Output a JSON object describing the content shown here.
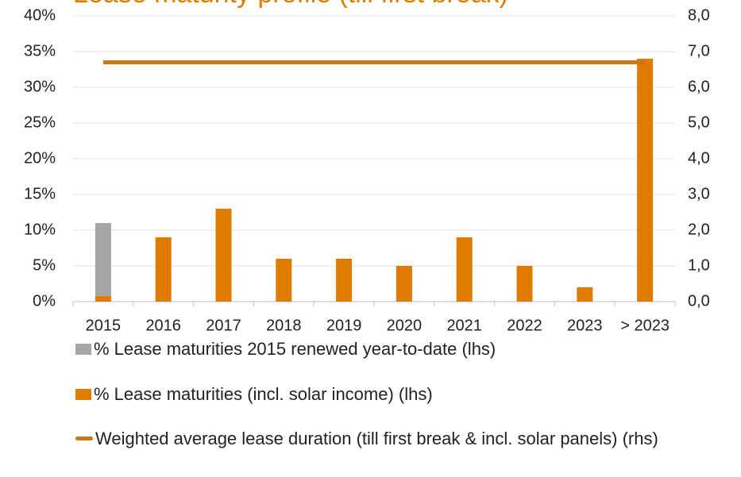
{
  "chart_data": {
    "type": "bar",
    "title": "Lease maturity profile (till first break)",
    "categories": [
      "2015",
      "2016",
      "2017",
      "2018",
      "2019",
      "2020",
      "2021",
      "2022",
      "2023",
      "> 2023"
    ],
    "series": [
      {
        "name": "% Lease maturities 2015 renewed year-to-date (lhs)",
        "color": "#a6a6a6",
        "values": [
          10.2,
          0,
          0,
          0,
          0,
          0,
          0,
          0,
          0,
          0
        ]
      },
      {
        "name": "% Lease maturities (incl. solar income) (lhs)",
        "color": "#e07b00",
        "values": [
          0.8,
          9,
          13,
          6,
          6,
          5,
          9,
          5,
          2,
          34
        ]
      },
      {
        "name": "Weighted average lease duration (till first break & incl. solar panels) (rhs)",
        "color": "#c8781a",
        "axis": "y2",
        "type": "line",
        "values": [
          6.7,
          6.7,
          6.7,
          6.7,
          6.7,
          6.7,
          6.7,
          6.7,
          6.7,
          6.7
        ]
      }
    ],
    "ylim": [
      0,
      40
    ],
    "yticks": [
      {
        "value": 0,
        "label": "0%"
      },
      {
        "value": 5,
        "label": "5%"
      },
      {
        "value": 10,
        "label": "10%"
      },
      {
        "value": 15,
        "label": "15%"
      },
      {
        "value": 20,
        "label": "20%"
      },
      {
        "value": 25,
        "label": "25%"
      },
      {
        "value": 30,
        "label": "30%"
      },
      {
        "value": 35,
        "label": "35%"
      },
      {
        "value": 40,
        "label": "40%"
      }
    ],
    "y2lim": [
      0,
      8
    ],
    "y2ticks": [
      {
        "value": 0,
        "label": "0,0"
      },
      {
        "value": 1,
        "label": "1,0"
      },
      {
        "value": 2,
        "label": "2,0"
      },
      {
        "value": 3,
        "label": "3,0"
      },
      {
        "value": 4,
        "label": "4,0"
      },
      {
        "value": 5,
        "label": "5,0"
      },
      {
        "value": 6,
        "label": "6,0"
      },
      {
        "value": 7,
        "label": "7,0"
      },
      {
        "value": 8,
        "label": "8,0"
      }
    ],
    "grid": true,
    "legend": "bottom"
  }
}
